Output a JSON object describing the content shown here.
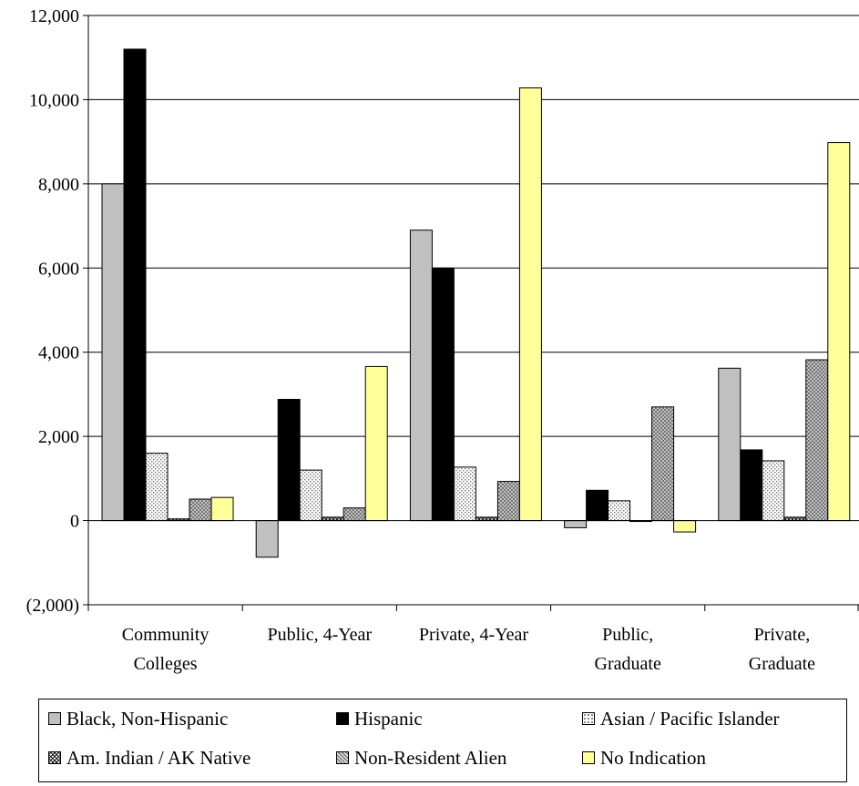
{
  "chart_data": {
    "type": "bar",
    "title": "",
    "xlabel": "",
    "ylabel": "",
    "categories": [
      [
        "Community",
        "Colleges"
      ],
      [
        "Public, 4-Year"
      ],
      [
        "Private, 4-Year"
      ],
      [
        "Public,",
        "Graduate"
      ],
      [
        "Private,",
        "Graduate"
      ]
    ],
    "ylim": [
      -2000,
      12000
    ],
    "yticks": [
      -2000,
      0,
      2000,
      4000,
      6000,
      8000,
      10000,
      12000
    ],
    "ytick_labels": [
      "(2,000)",
      "0",
      "2,000",
      "4,000",
      "6,000",
      "8,000",
      "10,000",
      "12,000"
    ],
    "grid": true,
    "legend_position": "bottom",
    "series": [
      {
        "name": "Black, Non-Hispanic",
        "values": [
          8000,
          -870,
          6900,
          -170,
          3620
        ],
        "color": "#c0c0c0",
        "pattern": "solid"
      },
      {
        "name": "Hispanic",
        "values": [
          11200,
          2880,
          6000,
          720,
          1680
        ],
        "color": "#000000",
        "pattern": "solid"
      },
      {
        "name": "Asian / Pacific Islander",
        "values": [
          1600,
          1200,
          1270,
          470,
          1420
        ],
        "color": "#ffffff",
        "pattern": "dots"
      },
      {
        "name": "Am. Indian / AK Native",
        "values": [
          40,
          80,
          80,
          0,
          80
        ],
        "color": "#808080",
        "pattern": "crosshatch"
      },
      {
        "name": "Non-Resident Alien",
        "values": [
          510,
          300,
          930,
          2700,
          3820
        ],
        "color": "#a0a0a0",
        "pattern": "grid"
      },
      {
        "name": "No Indication",
        "values": [
          550,
          3660,
          10280,
          -270,
          8980
        ],
        "color": "#ffff99",
        "pattern": "solid"
      }
    ]
  }
}
